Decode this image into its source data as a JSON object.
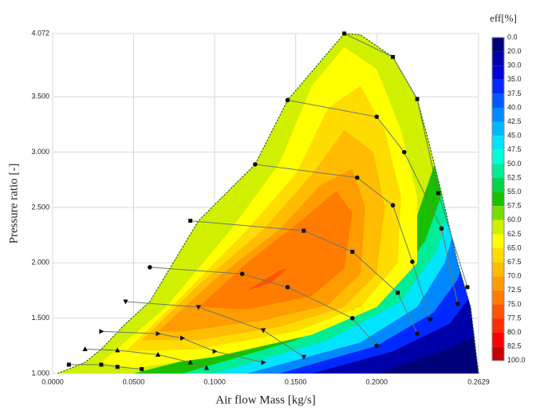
{
  "chart_data": {
    "type": "contour",
    "xlabel": "Air flow Mass [kg/s]",
    "ylabel": "Pressure ratio [-]",
    "xlim": [
      0,
      0.2629
    ],
    "ylim": [
      1.0,
      4.072
    ],
    "xticks": [
      {
        "value": 0,
        "label": "0.0000"
      },
      {
        "value": 0.05,
        "label": "0.0500"
      },
      {
        "value": 0.1,
        "label": "0.1000"
      },
      {
        "value": 0.15,
        "label": "0.1500"
      },
      {
        "value": 0.2,
        "label": "0.2000"
      },
      {
        "value": 0.2629,
        "label": "0.2629"
      }
    ],
    "yticks": [
      {
        "value": 1.0,
        "label": "1.000"
      },
      {
        "value": 1.5,
        "label": "1.500"
      },
      {
        "value": 2.0,
        "label": "2.000"
      },
      {
        "value": 2.5,
        "label": "2.500"
      },
      {
        "value": 3.0,
        "label": "3.000"
      },
      {
        "value": 3.5,
        "label": "3.500"
      },
      {
        "value": 4.072,
        "label": "4.072"
      }
    ],
    "grid": true,
    "colorbar": {
      "title": "eff[%]",
      "levels": [
        {
          "value": 0,
          "label": "0.0"
        },
        {
          "value": 20,
          "label": "20.0"
        },
        {
          "value": 30,
          "label": "30.0"
        },
        {
          "value": 35,
          "label": "35.0"
        },
        {
          "value": 37.5,
          "label": "37.5"
        },
        {
          "value": 40,
          "label": "40.0"
        },
        {
          "value": 42.5,
          "label": "42.5"
        },
        {
          "value": 45,
          "label": "45.0"
        },
        {
          "value": 47.5,
          "label": "47.5"
        },
        {
          "value": 50,
          "label": "50.0"
        },
        {
          "value": 52.5,
          "label": "52.5"
        },
        {
          "value": 55,
          "label": "55.0"
        },
        {
          "value": 57.5,
          "label": "57.5"
        },
        {
          "value": 60,
          "label": "60.0"
        },
        {
          "value": 62.5,
          "label": "62.5"
        },
        {
          "value": 65,
          "label": "65.0"
        },
        {
          "value": 67.5,
          "label": "67.5"
        },
        {
          "value": 70,
          "label": "70.0"
        },
        {
          "value": 72.5,
          "label": "72.5"
        },
        {
          "value": 75,
          "label": "75.0"
        },
        {
          "value": 77.5,
          "label": "77.5"
        },
        {
          "value": 80,
          "label": "80.0"
        },
        {
          "value": 82.5,
          "label": "82.5"
        },
        {
          "value": 100,
          "label": "100.0"
        }
      ],
      "colors": [
        "#000078",
        "#0000a8",
        "#0000d8",
        "#0028ff",
        "#0058ff",
        "#0088ff",
        "#00b8ff",
        "#00e4ff",
        "#00ffd8",
        "#00ec98",
        "#00d448",
        "#18c000",
        "#78dc00",
        "#d0f000",
        "#ffff00",
        "#ffdc00",
        "#ffbc00",
        "#ff9c00",
        "#ff7c00",
        "#ff5400",
        "#ff2c00",
        "#ff0000",
        "#c80000"
      ]
    },
    "map_boundary": {
      "x": [
        0.003,
        0.02,
        0.03,
        0.045,
        0.06,
        0.09,
        0.125,
        0.145,
        0.18,
        0.19,
        0.21,
        0.225,
        0.232,
        0.24,
        0.25,
        0.258,
        0.2629
      ],
      "y": [
        1.0,
        1.1,
        1.22,
        1.45,
        1.65,
        2.38,
        2.89,
        3.47,
        4.072,
        4.06,
        3.86,
        3.48,
        3.1,
        2.63,
        2.0,
        1.6,
        1.0
      ]
    },
    "choke_contours": [
      {
        "level": 20,
        "x": [
          0.2,
          0.24,
          0.2629
        ],
        "y": [
          1.0,
          1.2,
          1.35
        ]
      },
      {
        "level": 35,
        "x": [
          0.16,
          0.21,
          0.245,
          0.258,
          0.2629
        ],
        "y": [
          1.0,
          1.2,
          1.45,
          1.7,
          1.9
        ]
      },
      {
        "level": 40,
        "x": [
          0.14,
          0.2,
          0.235,
          0.25,
          0.258,
          0.2629
        ],
        "y": [
          1.0,
          1.25,
          1.55,
          1.85,
          2.3,
          2.6
        ]
      },
      {
        "level": 45,
        "x": [
          0.12,
          0.19,
          0.225,
          0.242,
          0.252,
          0.258
        ],
        "y": [
          1.0,
          1.28,
          1.6,
          2.0,
          2.5,
          3.0
        ]
      },
      {
        "level": 50,
        "x": [
          0.1,
          0.17,
          0.215,
          0.237,
          0.248,
          0.255
        ],
        "y": [
          1.0,
          1.3,
          1.65,
          2.1,
          2.6,
          3.1
        ]
      },
      {
        "level": 55,
        "x": [
          0.08,
          0.15,
          0.205,
          0.23,
          0.242,
          0.25
        ],
        "y": [
          1.0,
          1.3,
          1.7,
          2.2,
          2.7,
          3.2
        ]
      },
      {
        "level": 60,
        "x": [
          0.05,
          0.13,
          0.195,
          0.222,
          0.236,
          0.245
        ],
        "y": [
          1.0,
          1.3,
          1.75,
          2.3,
          2.9,
          3.4
        ]
      }
    ],
    "island_contours": [
      {
        "level": 62.5,
        "x": [
          0.03,
          0.07,
          0.11,
          0.14,
          0.16,
          0.18,
          0.2,
          0.215,
          0.225,
          0.225,
          0.2,
          0.16,
          0.1,
          0.05
        ],
        "y": [
          1.1,
          1.6,
          2.3,
          2.9,
          3.6,
          3.95,
          3.75,
          3.2,
          2.6,
          2.0,
          1.6,
          1.35,
          1.15,
          1.05
        ]
      },
      {
        "level": 65,
        "x": [
          0.045,
          0.08,
          0.12,
          0.15,
          0.17,
          0.19,
          0.205,
          0.215,
          0.213,
          0.19,
          0.15,
          0.09
        ],
        "y": [
          1.2,
          1.7,
          2.3,
          2.8,
          3.4,
          3.6,
          3.2,
          2.6,
          2.0,
          1.6,
          1.38,
          1.22
        ]
      },
      {
        "level": 67.5,
        "x": [
          0.055,
          0.09,
          0.13,
          0.16,
          0.18,
          0.198,
          0.205,
          0.2,
          0.18,
          0.14,
          0.09
        ],
        "y": [
          1.3,
          1.8,
          2.3,
          2.8,
          3.2,
          3.0,
          2.5,
          1.9,
          1.6,
          1.42,
          1.3
        ]
      },
      {
        "level": 70,
        "x": [
          0.065,
          0.1,
          0.14,
          0.165,
          0.185,
          0.193,
          0.19,
          0.17,
          0.13,
          0.08
        ],
        "y": [
          1.38,
          1.85,
          2.3,
          2.7,
          2.85,
          2.5,
          1.9,
          1.62,
          1.48,
          1.38
        ]
      },
      {
        "level": 72.5,
        "x": [
          0.09,
          0.12,
          0.155,
          0.175,
          0.185,
          0.18,
          0.16,
          0.12
        ],
        "y": [
          1.6,
          2.0,
          2.4,
          2.65,
          2.45,
          1.95,
          1.7,
          1.58
        ]
      },
      {
        "level": 75,
        "x": [
          0.12,
          0.14,
          0.145,
          0.135
        ],
        "y": [
          1.75,
          1.93,
          1.95,
          1.82
        ]
      }
    ],
    "speed_lines": [
      {
        "marker": "circle",
        "x": [
          0.06,
          0.117,
          0.145,
          0.185,
          0.2
        ],
        "y": [
          1.96,
          1.9,
          1.78,
          1.5,
          1.25
        ]
      },
      {
        "marker": "square",
        "x": [
          0.085,
          0.155,
          0.185,
          0.213,
          0.225
        ],
        "y": [
          2.38,
          2.29,
          2.1,
          1.73,
          1.36
        ]
      },
      {
        "marker": "circle",
        "x": [
          0.125,
          0.188,
          0.21,
          0.222,
          0.233
        ],
        "y": [
          2.89,
          2.77,
          2.52,
          2.01,
          1.49
        ]
      },
      {
        "marker": "circle",
        "x": [
          0.145,
          0.2,
          0.217,
          0.24,
          0.25
        ],
        "y": [
          3.47,
          3.32,
          3.0,
          2.31,
          1.63
        ]
      },
      {
        "marker": "square",
        "x": [
          0.18,
          0.21,
          0.225,
          0.238,
          0.256
        ],
        "y": [
          4.072,
          3.86,
          3.48,
          2.63,
          1.78
        ]
      },
      {
        "marker": "triangle-down",
        "x": [
          0.045,
          0.09,
          0.13,
          0.155
        ],
        "y": [
          1.65,
          1.6,
          1.39,
          1.15
        ]
      },
      {
        "marker": "triangle-right",
        "x": [
          0.03,
          0.065,
          0.08,
          0.1,
          0.13
        ],
        "y": [
          1.38,
          1.36,
          1.32,
          1.2,
          1.1
        ]
      },
      {
        "marker": "triangle-up",
        "x": [
          0.02,
          0.04,
          0.065,
          0.085,
          0.095
        ],
        "y": [
          1.22,
          1.21,
          1.17,
          1.1,
          1.05
        ]
      },
      {
        "marker": "square",
        "x": [
          0.01,
          0.03,
          0.04,
          0.055
        ],
        "y": [
          1.08,
          1.08,
          1.06,
          1.04
        ]
      }
    ]
  }
}
